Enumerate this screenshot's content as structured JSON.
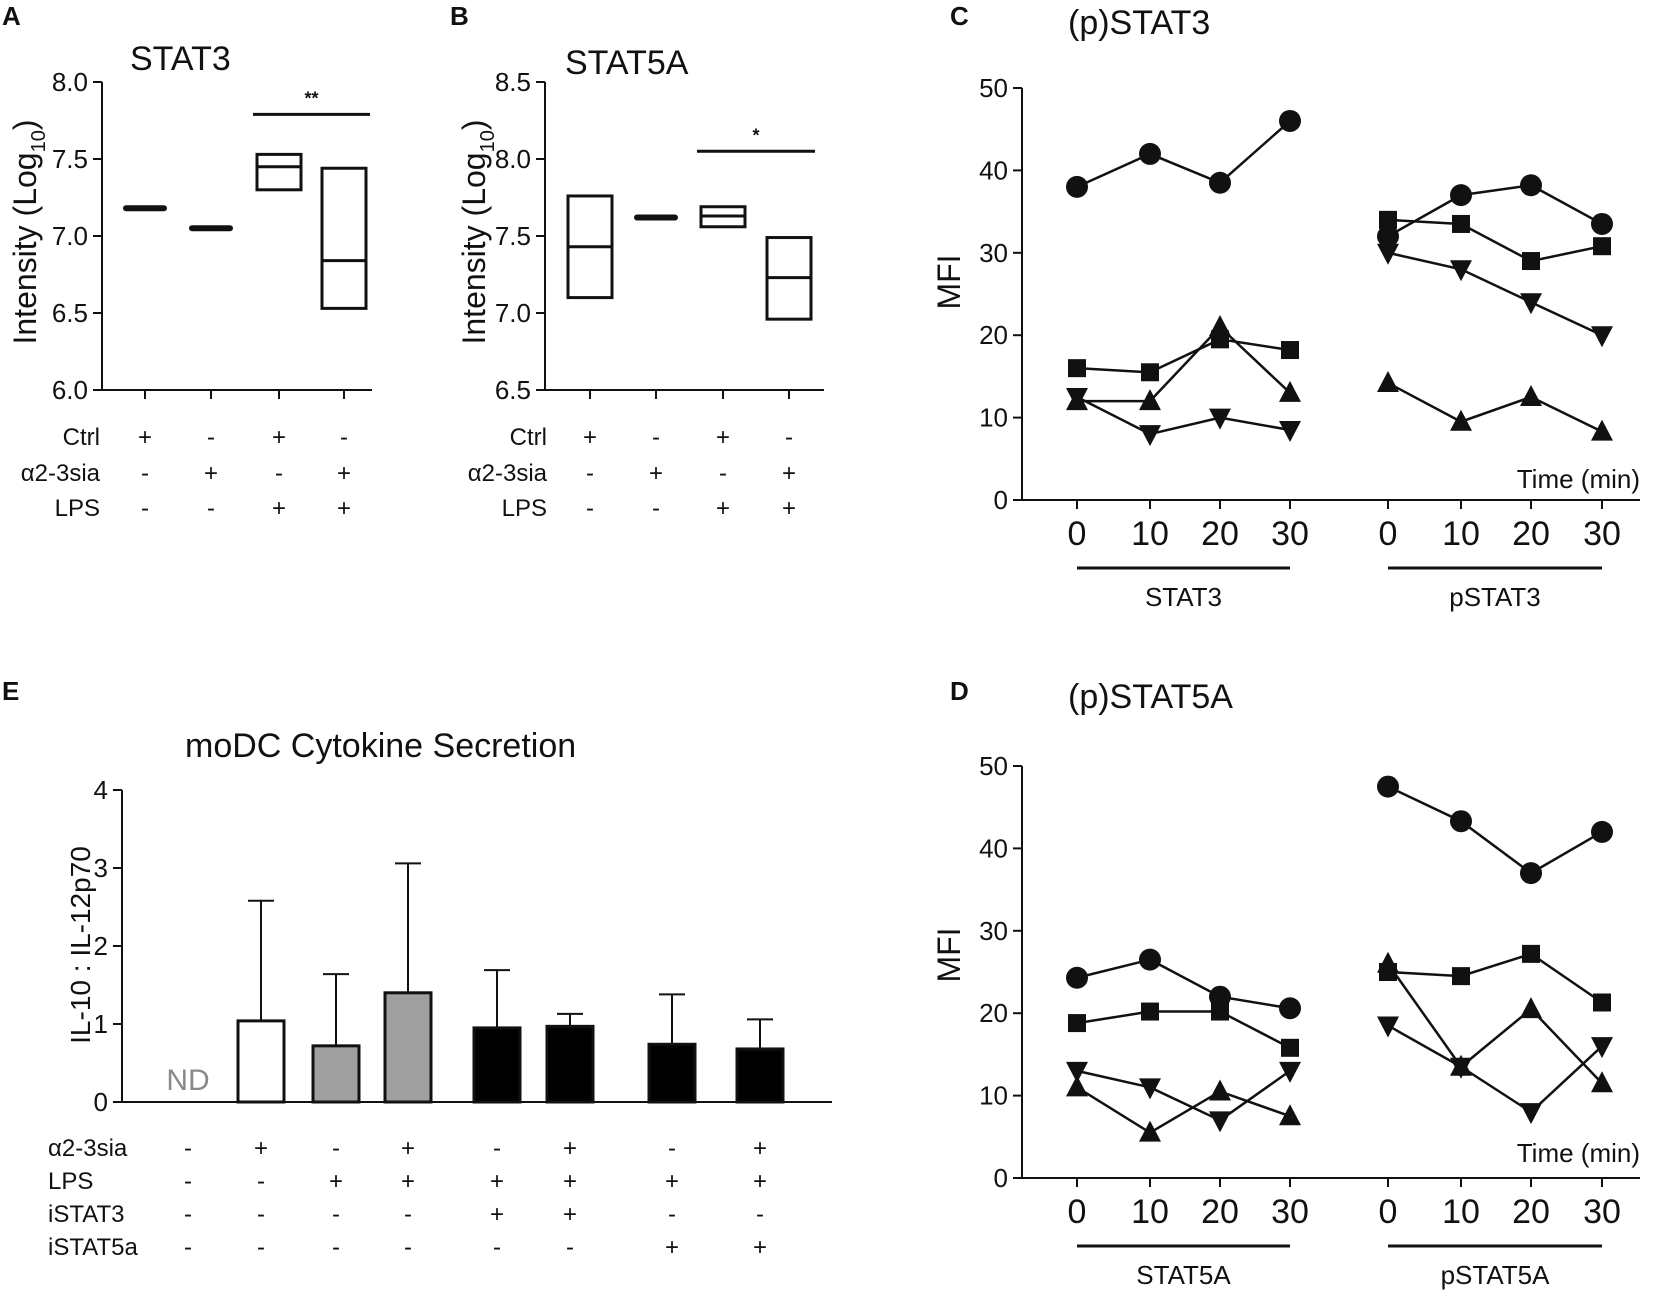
{
  "panels": {
    "a": "A",
    "b": "B",
    "c": "C",
    "d": "D",
    "e": "E"
  },
  "time_label": "Time (min)",
  "chart_data": [
    {
      "id": "A",
      "type": "box",
      "title": "STAT3",
      "ylabel": "Intensity (Log",
      "ylabel_sub": "10",
      "ylim": [
        6.0,
        8.0
      ],
      "yticks": [
        "6.0",
        "6.5",
        "7.0",
        "7.5",
        "8.0"
      ],
      "rows": [
        "Ctrl",
        "α2-3sia",
        "LPS"
      ],
      "conditions": [
        [
          "+",
          "-",
          "-"
        ],
        [
          "-",
          "+",
          "-"
        ],
        [
          "+",
          "-",
          "+"
        ],
        [
          "-",
          "+",
          "+"
        ]
      ],
      "boxes": [
        {
          "low": 7.16,
          "median": 7.18,
          "high": 7.2
        },
        {
          "low": 7.03,
          "median": 7.05,
          "high": 7.07
        },
        {
          "low": 7.3,
          "median": 7.45,
          "high": 7.53
        },
        {
          "low": 6.53,
          "median": 6.84,
          "high": 7.44
        }
      ],
      "significance": {
        "label": "**",
        "from": 2,
        "to": 3,
        "y": 7.79
      }
    },
    {
      "id": "B",
      "type": "box",
      "title": "STAT5A",
      "ylabel": "Intensity (Log",
      "ylabel_sub": "10",
      "ylim": [
        6.5,
        8.5
      ],
      "yticks": [
        "6.5",
        "7.0",
        "7.5",
        "8.0",
        "8.5"
      ],
      "rows": [
        "Ctrl",
        "α2-3sia",
        "LPS"
      ],
      "conditions": [
        [
          "+",
          "-",
          "-"
        ],
        [
          "-",
          "+",
          "-"
        ],
        [
          "+",
          "-",
          "+"
        ],
        [
          "-",
          "+",
          "+"
        ]
      ],
      "boxes": [
        {
          "low": 7.1,
          "median": 7.43,
          "high": 7.76
        },
        {
          "low": 7.6,
          "median": 7.62,
          "high": 7.64
        },
        {
          "low": 7.56,
          "median": 7.63,
          "high": 7.69
        },
        {
          "low": 6.96,
          "median": 7.23,
          "high": 7.49
        }
      ],
      "significance": {
        "label": "*",
        "from": 2,
        "to": 3,
        "y": 8.05
      }
    },
    {
      "id": "C",
      "type": "line",
      "title": "(p)STAT3",
      "ylabel": "MFI",
      "ylim": [
        0,
        50
      ],
      "yticks": [
        "0",
        "10",
        "20",
        "30",
        "40",
        "50"
      ],
      "x": [
        "0",
        "10",
        "20",
        "30"
      ],
      "groups": [
        "STAT3",
        "pSTAT3"
      ],
      "series": [
        {
          "marker": "circle",
          "values": [
            [
              38,
              42,
              38.5,
              46
            ],
            [
              32,
              37,
              38.2,
              33.5
            ]
          ]
        },
        {
          "marker": "square",
          "values": [
            [
              16,
              15.5,
              19.5,
              18.2
            ],
            [
              34,
              33.5,
              29,
              30.8
            ]
          ]
        },
        {
          "marker": "triangle-up",
          "values": [
            [
              12,
              12,
              21,
              13
            ],
            [
              14.2,
              9.5,
              12.5,
              8.3
            ]
          ]
        },
        {
          "marker": "triangle-down",
          "values": [
            [
              12.5,
              8,
              10,
              8.5
            ],
            [
              30,
              28,
              24,
              20
            ]
          ]
        }
      ]
    },
    {
      "id": "D",
      "type": "line",
      "title": "(p)STAT5A",
      "ylabel": "MFI",
      "ylim": [
        0,
        50
      ],
      "yticks": [
        "0",
        "10",
        "20",
        "30",
        "40",
        "50"
      ],
      "x": [
        "0",
        "10",
        "20",
        "30"
      ],
      "groups": [
        "STAT5A",
        "pSTAT5A"
      ],
      "series": [
        {
          "marker": "circle",
          "values": [
            [
              24.3,
              26.5,
              22,
              20.6
            ],
            [
              47.5,
              43.3,
              37,
              42
            ]
          ]
        },
        {
          "marker": "square",
          "values": [
            [
              18.8,
              20.2,
              20.2,
              15.8
            ],
            [
              25,
              24.5,
              27.2,
              21.3
            ]
          ]
        },
        {
          "marker": "triangle-up",
          "values": [
            [
              11,
              5.5,
              10.5,
              7.5
            ],
            [
              26,
              13.5,
              20.5,
              11.5
            ]
          ]
        },
        {
          "marker": "triangle-down",
          "values": [
            [
              13,
              11,
              7,
              13
            ],
            [
              18.5,
              13.5,
              8,
              16
            ]
          ]
        }
      ]
    },
    {
      "id": "E",
      "type": "bar",
      "title": "moDC Cytokine Secretion",
      "ylabel": "IL-10 : IL-12p70",
      "ylim": [
        0,
        4
      ],
      "yticks": [
        "0",
        "1",
        "2",
        "3",
        "4"
      ],
      "nd_label": "ND",
      "rows": [
        "α2-3sia",
        "LPS",
        "iSTAT3",
        "iSTAT5a"
      ],
      "conditions": [
        [
          "-",
          "-",
          "-",
          "-"
        ],
        [
          "+",
          "-",
          "-",
          "-"
        ],
        [
          "-",
          "+",
          "-",
          "-"
        ],
        [
          "+",
          "+",
          "-",
          "-"
        ],
        [
          "-",
          "+",
          "+",
          "-"
        ],
        [
          "+",
          "+",
          "+",
          "-"
        ],
        [
          "-",
          "+",
          "-",
          "+"
        ],
        [
          "+",
          "+",
          "-",
          "+"
        ]
      ],
      "values": [
        null,
        1.04,
        0.72,
        1.4,
        0.95,
        0.97,
        0.74,
        0.68
      ],
      "errors": [
        null,
        1.54,
        0.92,
        1.66,
        0.74,
        0.16,
        0.64,
        0.38
      ],
      "fills": [
        "none",
        "#ffffff",
        "#a0a0a0",
        "#a0a0a0",
        "#000000",
        "#000000",
        "#000000",
        "#000000"
      ]
    }
  ]
}
